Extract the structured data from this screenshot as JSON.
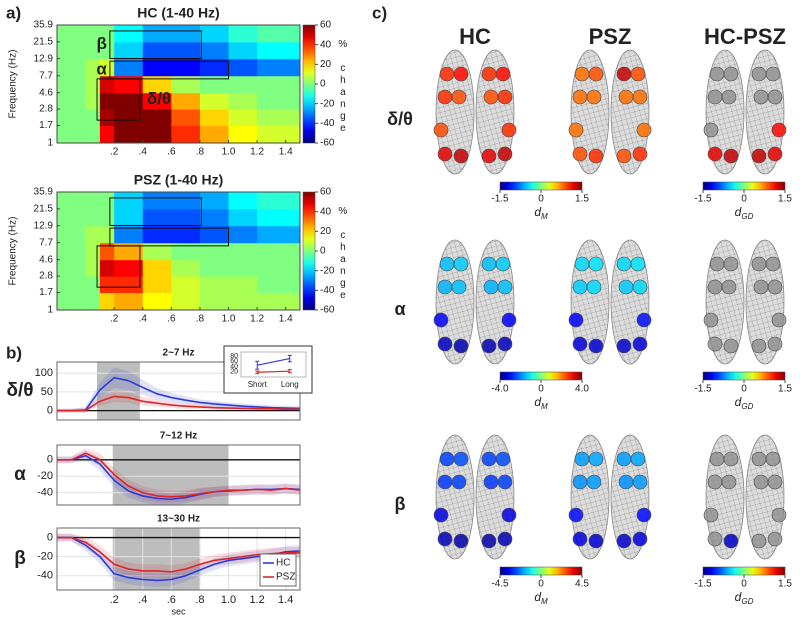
{
  "panel_labels": [
    "a)",
    "b)",
    "c)"
  ],
  "chart_data": [
    {
      "type": "heatmap",
      "title": "HC (1-40 Hz)",
      "ylabel": "Frequency (Hz)",
      "log_y": true,
      "x_edges": [
        -0.2,
        0,
        0.1,
        0.2,
        0.4,
        0.6,
        0.8,
        1.0,
        1.2,
        1.5
      ],
      "y_edges": [
        1,
        1.7,
        2.8,
        4.6,
        7.7,
        12.9,
        21.5,
        35.9
      ],
      "z": [
        [
          0,
          0,
          45,
          60,
          60,
          40,
          25,
          15,
          10
        ],
        [
          0,
          0,
          55,
          60,
          60,
          35,
          20,
          10,
          5
        ],
        [
          0,
          5,
          60,
          60,
          45,
          25,
          10,
          5,
          0
        ],
        [
          0,
          5,
          50,
          45,
          20,
          5,
          0,
          0,
          0
        ],
        [
          0,
          5,
          10,
          -30,
          -45,
          -45,
          -40,
          -35,
          -30
        ],
        [
          0,
          0,
          0,
          -20,
          -35,
          -35,
          -30,
          -20,
          -15
        ],
        [
          0,
          0,
          0,
          -15,
          -25,
          -25,
          -20,
          -10,
          -5
        ]
      ],
      "xlim": [
        -0.2,
        1.5
      ],
      "ylim": [
        1,
        35.9
      ],
      "xticks": [
        {
          "value": 0.2,
          "label": ".2"
        },
        {
          "value": 0.4,
          "label": ".4"
        },
        {
          "value": 0.6,
          "label": ".6"
        },
        {
          "value": 0.8,
          "label": ".8"
        },
        {
          "value": 1,
          "label": "1.0"
        },
        1.2,
        1.4
      ],
      "yticks": [
        1,
        1.7,
        2.8,
        4.6,
        7.7,
        12.9,
        21.5,
        35.9
      ],
      "clim": [
        -60,
        60
      ],
      "cticks": [
        60,
        40,
        20,
        0,
        -20,
        -40,
        -60
      ],
      "clabel": "% change",
      "boxes": [
        {
          "label": "β",
          "x": [
            0.17,
            0.81
          ],
          "y": [
            13,
            30
          ],
          "label_side": "left"
        },
        {
          "label": "α",
          "x": [
            0.17,
            1.0
          ],
          "y": [
            7,
            12
          ],
          "label_side": "left"
        },
        {
          "label": "δ/θ",
          "x": [
            0.08,
            0.38
          ],
          "y": [
            2,
            7
          ],
          "label_side": "right"
        }
      ]
    },
    {
      "type": "heatmap",
      "title": "PSZ (1-40 Hz)",
      "ylabel": "Frequency (Hz)",
      "log_y": true,
      "x_edges": [
        -0.2,
        0,
        0.1,
        0.2,
        0.4,
        0.6,
        0.8,
        1.0,
        1.2,
        1.5
      ],
      "y_edges": [
        1,
        1.7,
        2.8,
        4.6,
        7.7,
        12.9,
        21.5,
        35.9
      ],
      "z": [
        [
          0,
          0,
          20,
          25,
          15,
          10,
          5,
          5,
          5
        ],
        [
          0,
          0,
          40,
          40,
          20,
          10,
          5,
          5,
          0
        ],
        [
          0,
          5,
          50,
          45,
          20,
          5,
          0,
          0,
          0
        ],
        [
          0,
          5,
          35,
          25,
          5,
          0,
          0,
          0,
          0
        ],
        [
          0,
          5,
          5,
          -30,
          -40,
          -40,
          -35,
          -30,
          -25
        ],
        [
          0,
          0,
          0,
          -20,
          -35,
          -35,
          -30,
          -20,
          -15
        ],
        [
          0,
          0,
          0,
          -20,
          -30,
          -30,
          -25,
          -15,
          -10
        ]
      ],
      "xlim": [
        -0.2,
        1.5
      ],
      "ylim": [
        1,
        35.9
      ],
      "xticks": [
        {
          "value": 0.2,
          "label": ".2"
        },
        {
          "value": 0.4,
          "label": ".4"
        },
        {
          "value": 0.6,
          "label": ".6"
        },
        {
          "value": 0.8,
          "label": ".8"
        },
        {
          "value": 1,
          "label": "1.0"
        },
        1.2,
        1.4
      ],
      "yticks": [
        1,
        1.7,
        2.8,
        4.6,
        7.7,
        12.9,
        21.5,
        35.9
      ],
      "clim": [
        -60,
        60
      ],
      "cticks": [
        60,
        40,
        20,
        0,
        -20,
        -40,
        -60
      ],
      "clabel": "% change",
      "boxes": [
        {
          "x": [
            0.17,
            0.81
          ],
          "y": [
            13,
            30
          ]
        },
        {
          "x": [
            0.17,
            1.0
          ],
          "y": [
            7,
            12
          ]
        },
        {
          "x": [
            0.08,
            0.38
          ],
          "y": [
            2,
            7
          ]
        }
      ]
    },
    {
      "type": "line",
      "title": "2~7 Hz",
      "side_label": "δ/θ",
      "x": [
        -0.2,
        -0.1,
        0,
        0.1,
        0.2,
        0.3,
        0.4,
        0.5,
        0.6,
        0.7,
        0.8,
        0.9,
        1.0,
        1.1,
        1.2,
        1.3,
        1.4,
        1.5
      ],
      "series": [
        {
          "color": "#2b3bd9",
          "values": [
            0,
            0,
            2,
            55,
            88,
            80,
            62,
            45,
            35,
            28,
            22,
            18,
            15,
            12,
            10,
            8,
            7,
            6
          ],
          "error": [
            5,
            5,
            8,
            20,
            28,
            25,
            20,
            15,
            12,
            10,
            8,
            8,
            7,
            7,
            6,
            6,
            6,
            6
          ]
        },
        {
          "color": "#d9262b",
          "values": [
            0,
            0,
            1,
            25,
            38,
            35,
            25,
            20,
            15,
            12,
            10,
            8,
            7,
            6,
            5,
            5,
            4,
            4
          ],
          "error": [
            5,
            5,
            6,
            12,
            15,
            14,
            12,
            10,
            8,
            7,
            6,
            6,
            5,
            5,
            5,
            5,
            5,
            5
          ]
        }
      ],
      "xlim": [
        -0.2,
        1.5
      ],
      "ylim": [
        -25,
        130
      ],
      "yticks": [
        0,
        50,
        100
      ],
      "shaded": [
        0.08,
        0.38
      ],
      "grid": true
    },
    {
      "type": "errorbar",
      "categories": [
        "Short",
        "Long"
      ],
      "series": [
        {
          "color": "#2b3bd9",
          "values": [
            45,
            70
          ],
          "error": [
            15,
            12
          ]
        },
        {
          "color": "#d9262b",
          "values": [
            18,
            22
          ],
          "error": [
            5,
            6
          ]
        }
      ],
      "ylim": [
        0,
        95
      ],
      "yticks": [
        20,
        40,
        60,
        80
      ]
    },
    {
      "type": "line",
      "title": "7~12 Hz",
      "side_label": "α",
      "x": [
        -0.2,
        -0.1,
        0,
        0.1,
        0.2,
        0.3,
        0.4,
        0.5,
        0.6,
        0.7,
        0.8,
        0.9,
        1.0,
        1.1,
        1.2,
        1.3,
        1.4,
        1.5
      ],
      "series": [
        {
          "color": "#2b3bd9",
          "values": [
            0,
            0,
            5,
            -5,
            -25,
            -38,
            -44,
            -47,
            -48,
            -46,
            -42,
            -39,
            -38,
            -37,
            -36,
            -36,
            -35,
            -36
          ],
          "error": [
            4,
            4,
            6,
            8,
            8,
            8,
            8,
            8,
            7,
            7,
            7,
            6,
            6,
            6,
            6,
            6,
            6,
            6
          ]
        },
        {
          "color": "#d9262b",
          "values": [
            0,
            0,
            8,
            0,
            -18,
            -32,
            -40,
            -44,
            -45,
            -44,
            -41,
            -39,
            -37,
            -37,
            -36,
            -37,
            -35,
            -37
          ],
          "error": [
            4,
            4,
            6,
            8,
            8,
            8,
            8,
            8,
            7,
            7,
            7,
            6,
            6,
            6,
            6,
            6,
            6,
            6
          ]
        }
      ],
      "xlim": [
        -0.2,
        1.5
      ],
      "ylim": [
        -55,
        18
      ],
      "yticks": [
        -40,
        -20,
        0
      ],
      "shaded": [
        0.19,
        1.0
      ],
      "grid": true
    },
    {
      "type": "line",
      "title": "13~30 Hz",
      "side_label": "β",
      "xlabel": "sec",
      "x": [
        -0.2,
        -0.1,
        0,
        0.1,
        0.2,
        0.3,
        0.4,
        0.5,
        0.6,
        0.7,
        0.8,
        0.9,
        1.0,
        1.1,
        1.2,
        1.3,
        1.4,
        1.5
      ],
      "series": [
        {
          "name": "HC",
          "color": "#2b3bd9",
          "values": [
            0,
            0,
            -8,
            -20,
            -38,
            -42,
            -44,
            -45,
            -44,
            -40,
            -34,
            -28,
            -24,
            -22,
            -20,
            -18,
            -15,
            -14
          ],
          "error": [
            4,
            4,
            6,
            7,
            7,
            7,
            7,
            7,
            7,
            6,
            6,
            6,
            6,
            6,
            6,
            6,
            6,
            6
          ]
        },
        {
          "name": "PSZ",
          "color": "#d9262b",
          "values": [
            0,
            0,
            -5,
            -15,
            -28,
            -33,
            -35,
            -35,
            -36,
            -33,
            -28,
            -24,
            -22,
            -20,
            -18,
            -17,
            -16,
            -16
          ],
          "error": [
            4,
            4,
            6,
            7,
            7,
            7,
            7,
            7,
            7,
            6,
            6,
            6,
            6,
            6,
            6,
            6,
            6,
            6
          ]
        }
      ],
      "xlim": [
        -0.2,
        1.5
      ],
      "ylim": [
        -55,
        10
      ],
      "yticks": [
        -40,
        -20,
        0
      ],
      "xticks": [
        {
          "value": 0.2,
          "label": ".2"
        },
        {
          "value": 0.4,
          "label": ".4"
        },
        {
          "value": 0.6,
          "label": ".6"
        },
        {
          "value": 0.8,
          "label": ".8"
        },
        {
          "value": 1,
          "label": "1.0"
        },
        1.2,
        1.4
      ],
      "shaded": [
        0.19,
        0.8
      ],
      "grid": true,
      "legend": "lower right"
    },
    {
      "type": "brains",
      "columns": [
        "HC",
        "PSZ",
        "HC-PSZ"
      ],
      "rows": [
        {
          "label": "δ/θ",
          "brains": [
            [
              1.0,
              1.1,
              1.0,
              0.9,
              0.9,
              1.2,
              1.3,
              1.1,
              1.0,
              1.0,
              0.9,
              1.0,
              1.3,
              1.2
            ],
            [
              0.8,
              0.9,
              0.8,
              0.8,
              0.8,
              0.9,
              1.0,
              0.9,
              1.3,
              0.8,
              0.8,
              0.8,
              1.0,
              0.9
            ],
            [
              null,
              null,
              null,
              null,
              null,
              1.2,
              1.3,
              null,
              null,
              null,
              null,
              1.1,
              1.2,
              1.3
            ]
          ],
          "colorbars": [
            {
              "clim": [
                -1.5,
                1.5
              ],
              "ticks": [
                -1.5,
                0,
                1.5
              ],
              "symbol": "d",
              "subscript": "M"
            },
            {
              "clim": [
                -1.5,
                1.5
              ],
              "ticks": [
                -1.5,
                0,
                1.5
              ],
              "symbol": "d",
              "subscript": "GD"
            }
          ]
        },
        {
          "label": "α",
          "brains": [
            [
              -1.5,
              -1.4,
              -1.6,
              -1.5,
              -3.0,
              -3.5,
              -3.6,
              -1.4,
              -1.5,
              -1.5,
              -1.6,
              -3.0,
              -3.5,
              -3.6
            ],
            [
              -1.3,
              -1.2,
              -1.4,
              -1.3,
              -3.0,
              -3.3,
              -3.4,
              -1.2,
              -1.3,
              -1.3,
              -1.4,
              -2.9,
              -3.3,
              -3.4
            ],
            [
              null,
              null,
              null,
              null,
              null,
              null,
              null,
              null,
              null,
              null,
              null,
              null,
              null,
              null
            ]
          ],
          "colorbars": [
            {
              "clim": [
                -4,
                4
              ],
              "ticks": [
                {
                  "value": -4,
                  "label": "-4.0"
                },
                0,
                {
                  "value": 4,
                  "label": "4.0"
                }
              ],
              "symbol": "d",
              "subscript": "M"
            },
            {
              "clim": [
                -1.5,
                1.5
              ],
              "ticks": [
                -1.5,
                0,
                1.5
              ],
              "symbol": "d",
              "subscript": "GD"
            }
          ]
        },
        {
          "label": "β",
          "brains": [
            [
              -2.8,
              -2.7,
              -2.9,
              -2.8,
              -3.6,
              -4.0,
              -4.1,
              -2.7,
              -2.8,
              -2.8,
              -2.9,
              -3.6,
              -4.0,
              -4.1
            ],
            [
              -2.0,
              -1.9,
              -2.1,
              -2.0,
              -3.3,
              -3.7,
              -3.8,
              -1.9,
              -2.0,
              -2.0,
              -2.1,
              -3.3,
              -3.7,
              -3.8
            ],
            [
              null,
              null,
              null,
              null,
              null,
              null,
              -1.3,
              null,
              null,
              null,
              null,
              null,
              null,
              null
            ]
          ],
          "colorbars": [
            {
              "clim": [
                -4.5,
                4.5
              ],
              "ticks": [
                -4.5,
                0,
                4.5
              ],
              "symbol": "d",
              "subscript": "M"
            },
            {
              "clim": [
                -1.5,
                1.5
              ],
              "ticks": [
                -1.5,
                0,
                1.5
              ],
              "symbol": "d",
              "subscript": "GD"
            }
          ]
        }
      ]
    }
  ]
}
